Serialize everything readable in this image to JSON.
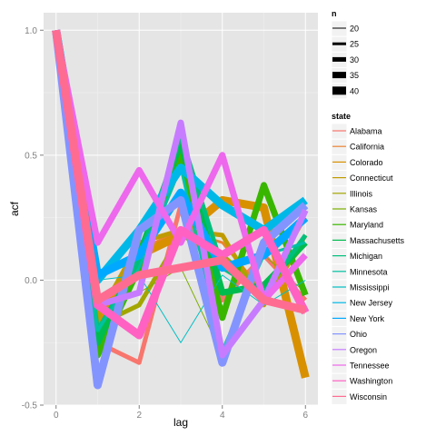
{
  "chart_data": {
    "type": "line",
    "xlabel": "lag",
    "ylabel": "acf",
    "x": [
      0,
      1,
      2,
      3,
      4,
      5,
      6
    ],
    "xlim": [
      -0.3,
      6.3
    ],
    "ylim": [
      -0.5,
      1.07
    ],
    "x_ticks": [
      {
        "value": 0,
        "label": "0"
      },
      {
        "value": 2,
        "label": "2"
      },
      {
        "value": 4,
        "label": "4"
      },
      {
        "value": 6,
        "label": "6"
      }
    ],
    "y_ticks": [
      {
        "value": 1.0,
        "label": "1.0"
      },
      {
        "value": 0.5,
        "label": "0.5"
      },
      {
        "value": 0.0,
        "label": "0.0"
      },
      {
        "value": -0.5,
        "label": "-0.5"
      }
    ],
    "grid": true,
    "legend_placement": "right",
    "size_legend": {
      "title": "n",
      "entries": [
        {
          "label": "20",
          "n": 20
        },
        {
          "label": "25",
          "n": 25
        },
        {
          "label": "30",
          "n": 30
        },
        {
          "label": "35",
          "n": 35
        },
        {
          "label": "40",
          "n": 40
        }
      ]
    },
    "color_legend_title": "state",
    "series": [
      {
        "name": "Alabama",
        "color": "#F8766D",
        "n": 30,
        "values": [
          1.0,
          -0.25,
          -0.33,
          0.3,
          -0.08,
          0.1,
          -0.08
        ]
      },
      {
        "name": "California",
        "color": "#EA8331",
        "n": 25,
        "values": [
          1.0,
          -0.12,
          0.12,
          0.2,
          0.15,
          -0.05,
          0.25
        ]
      },
      {
        "name": "Colorado",
        "color": "#D89000",
        "n": 40,
        "values": [
          1.0,
          -0.18,
          0.1,
          0.18,
          0.32,
          0.29,
          -0.39
        ]
      },
      {
        "name": "Connecticut",
        "color": "#C09B00",
        "n": 30,
        "values": [
          1.0,
          -0.15,
          0.15,
          0.2,
          0.18,
          -0.1,
          0.18
        ]
      },
      {
        "name": "Illinois",
        "color": "#A3A500",
        "n": 30,
        "values": [
          1.0,
          -0.18,
          -0.1,
          0.18,
          0.1,
          -0.05,
          0.15
        ]
      },
      {
        "name": "Kansas",
        "color": "#7CAE00",
        "n": 20,
        "values": [
          1.0,
          -0.1,
          -0.05,
          0.05,
          -0.3,
          0.1,
          -0.05
        ]
      },
      {
        "name": "Maryland",
        "color": "#39B600",
        "n": 35,
        "values": [
          1.0,
          -0.3,
          0.05,
          0.5,
          -0.15,
          0.38,
          -0.06
        ]
      },
      {
        "name": "Massachusetts",
        "color": "#00BB4E",
        "n": 35,
        "values": [
          1.0,
          -0.25,
          0.1,
          0.55,
          -0.05,
          -0.02,
          0.15
        ]
      },
      {
        "name": "Michigan",
        "color": "#00BF7D",
        "n": 30,
        "values": [
          1.0,
          -0.2,
          0.08,
          0.58,
          0.05,
          -0.05,
          0.18
        ]
      },
      {
        "name": "Minnesota",
        "color": "#00C1A3",
        "n": 25,
        "values": [
          1.0,
          -0.2,
          0.05,
          0.45,
          -0.28,
          0.1,
          0.15
        ]
      },
      {
        "name": "Mississippi",
        "color": "#00BFC4",
        "n": 20,
        "values": [
          1.0,
          0.0,
          0.02,
          -0.25,
          0.02,
          -0.1,
          0.0
        ]
      },
      {
        "name": "New Jersey",
        "color": "#00B8E7",
        "n": 40,
        "values": [
          1.0,
          0.0,
          0.2,
          0.45,
          0.3,
          0.2,
          0.32
        ]
      },
      {
        "name": "New York",
        "color": "#00A9FF",
        "n": 40,
        "values": [
          1.0,
          0.02,
          0.1,
          0.35,
          0.05,
          0.1,
          0.25
        ]
      },
      {
        "name": "Ohio",
        "color": "#8494FF",
        "n": 40,
        "values": [
          1.0,
          -0.42,
          0.2,
          0.32,
          -0.33,
          0.15,
          0.3
        ]
      },
      {
        "name": "Oregon",
        "color": "#C77CFF",
        "n": 35,
        "values": [
          1.0,
          -0.1,
          -0.05,
          0.63,
          -0.3,
          -0.08,
          0.28
        ]
      },
      {
        "name": "Tennessee",
        "color": "#ED68ED",
        "n": 35,
        "values": [
          1.0,
          0.15,
          0.44,
          0.15,
          0.5,
          -0.08,
          0.1
        ]
      },
      {
        "name": "Washington",
        "color": "#FF61C3",
        "n": 40,
        "values": [
          1.0,
          -0.1,
          -0.22,
          0.2,
          0.1,
          0.2,
          -0.13
        ]
      },
      {
        "name": "Wisconsin",
        "color": "#FF6C91",
        "n": 40,
        "values": [
          1.0,
          -0.08,
          0.02,
          0.05,
          0.08,
          -0.08,
          -0.12
        ]
      }
    ]
  }
}
